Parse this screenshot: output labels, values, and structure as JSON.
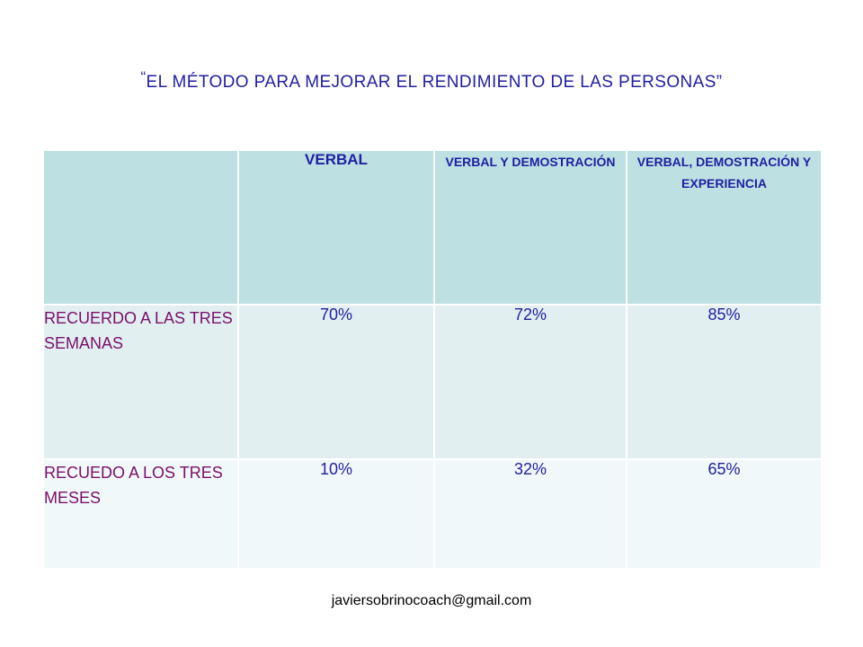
{
  "slide": {
    "title_open_quote": "“",
    "title": "EL MÉTODO PARA MEJORAR EL RENDIMIENTO DE LAS PERSONAS”",
    "footer_email": "javiersobrinocoach@gmail.com"
  },
  "table": {
    "header": {
      "corner": "",
      "columns": [
        "VERBAL",
        "VERBAL Y DEMOSTRACIÓN",
        "VERBAL, DEMOSTRACIÓN Y EXPERIENCIA"
      ]
    },
    "rows": [
      {
        "label": "RECUERDO A LAS TRES SEMANAS",
        "values": [
          "70%",
          "72%",
          "85%"
        ]
      },
      {
        "label": "RECUEDO A LOS TRES MESES",
        "values": [
          "10%",
          "32%",
          "65%"
        ]
      }
    ]
  },
  "colors": {
    "title_text": "#1f1fa0",
    "header_background": "#bde0e3",
    "row_1_background": "#e1eff1",
    "row_2_background": "#f1f8f9",
    "row_label_text": "#7a0f6b",
    "value_text": "#1f1fa0"
  }
}
